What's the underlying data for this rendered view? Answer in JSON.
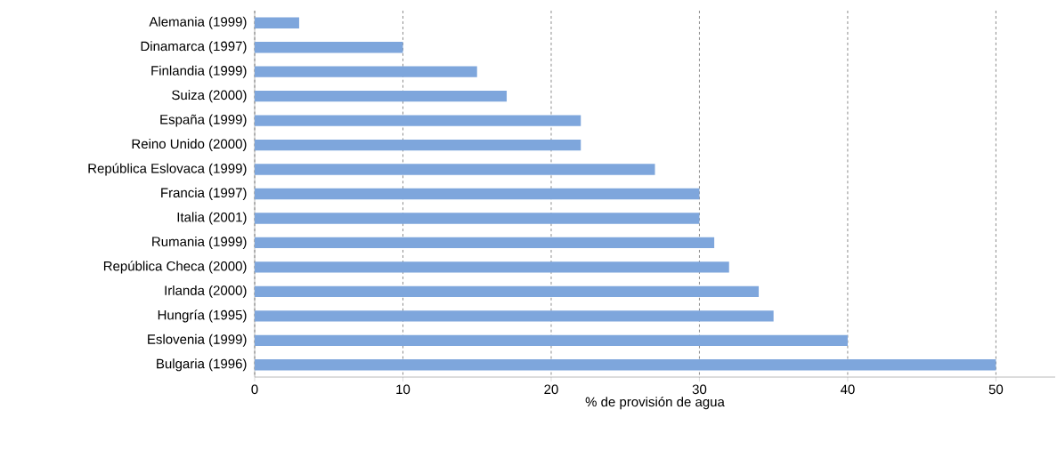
{
  "chart_data": {
    "type": "bar",
    "orientation": "horizontal",
    "xlabel": "% de provisión de agua",
    "categories": [
      "Alemania (1999)",
      "Dinamarca (1997)",
      "Finlandia (1999)",
      "Suiza (2000)",
      "España (1999)",
      "Reino Unido (2000)",
      "República Eslovaca (1999)",
      "Francia (1997)",
      "Italia (2001)",
      "Rumania (1999)",
      "República Checa (2000)",
      "Irlanda (2000)",
      "Hungría (1995)",
      "Eslovenia (1999)",
      "Bulgaria (1996)"
    ],
    "values": [
      3,
      10,
      15,
      17,
      22,
      22,
      27,
      30,
      30,
      31,
      32,
      34,
      35,
      40,
      50
    ],
    "color": "#7ea6dc",
    "xlim": [
      0,
      54
    ],
    "xticks": [
      0,
      10,
      20,
      30,
      40,
      50
    ],
    "grid": "x"
  }
}
